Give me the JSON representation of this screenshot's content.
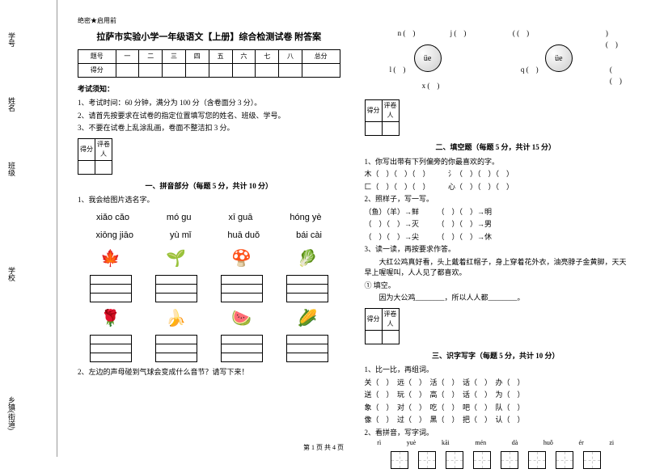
{
  "margin": {
    "labels": [
      "学号",
      "姓名",
      "班级",
      "学校",
      "乡镇(街道)"
    ],
    "dashes": [
      "题",
      "齐",
      "不",
      "内",
      "线",
      "封",
      "密"
    ]
  },
  "header": {
    "secret": "绝密★启用前",
    "title": "拉萨市实验小学一年级语文【上册】综合检测试卷 附答案"
  },
  "scoreTable": {
    "cols": [
      "题号",
      "一",
      "二",
      "三",
      "四",
      "五",
      "六",
      "七",
      "八",
      "总分"
    ],
    "row2": "得分"
  },
  "notice": {
    "heading": "考试须知：",
    "items": [
      "1、考试时间：60 分钟，满分为 100 分（含卷面分 3 分）。",
      "2、请首先按要求在试卷的指定位置填写您的姓名、班级、学号。",
      "3、不要在试卷上乱涂乱画，卷面不整洁扣 3 分。"
    ]
  },
  "scoreBox": {
    "c1": "得分",
    "c2": "评卷人"
  },
  "sec1": {
    "title": "一、拼音部分（每题 5 分，共计 10 分）",
    "q1": "1、我会给图片选名字。",
    "pinyin": [
      "xiǎo cǎo",
      "mó gu",
      "xī guā",
      "hóng yè",
      "xiōng jiāo",
      "yù mǐ",
      "huā duǒ",
      "bái cài"
    ],
    "q2": "2、左边的声母碰到气球会变成什么音节？请写下来！",
    "icons": [
      "🍁",
      "🌱",
      "🍄",
      "🥬",
      "🌹",
      "🍌",
      "🍉",
      "🌽"
    ]
  },
  "diag": {
    "center": "üe",
    "rays1": [
      {
        "t": "n",
        "p": "left:30px;top:5px"
      },
      {
        "t": "j",
        "p": "left:95px;top:5px"
      },
      {
        "t": "l",
        "p": "left:20px;top:50px"
      },
      {
        "t": "x",
        "p": "left:60px;top:70px"
      }
    ],
    "rays2": [
      {
        "t": "(",
        "p": "left:10px;top:5px"
      },
      {
        "t": ")",
        "p": "left:125px;top:5px"
      },
      {
        "t": "q",
        "p": "left:20px;top:50px"
      },
      {
        "t": "(",
        "p": "left:130px;top:50px"
      }
    ]
  },
  "sec2": {
    "title": "二、填空题（每题 5 分，共计 15 分）",
    "q1": "1、你写出带有下列偏旁的你最喜欢的字。",
    "lines1": [
      "木（　）（　）（　）　　　氵（　）（　）（　）",
      "匚（　）（　）（　）　　　心（　）（　）（　）"
    ],
    "q2": "2、照样子，写一写。",
    "lines2": [
      "（鱼）（羊）→鲜　　　（　）（　）→明",
      "（　）（　）→灭　　　（　）（　）→男",
      "（　）（　）→尖　　　（　）（　）→休"
    ],
    "q3": "3、读一读，再按要求作答。",
    "para": "　　大红公鸡真好看，头上戴着红帽子，身上穿着花外衣，油亮脖子金黄脚，天天早上喔喔叫，人人见了都喜欢。",
    "fill": [
      "① 填空。",
      "　　因为大公鸡________，所以人人都________。"
    ]
  },
  "sec3": {
    "title": "三、识字写字（每题 5 分，共计 10 分）",
    "q1": "1、比一比，再组词。",
    "lines": [
      "关（　）　远（　）　活（　）　话（　）　办（　）",
      "送（　）　玩（　）　高（　）　话（　）　为（　）",
      "象（　）　对（　）　吃（　）　吧（　）　队（　）",
      "像（　）　过（　）　黑（　）　把（　）　认（　）"
    ],
    "q2": "2、看拼音，写字词。",
    "pinyin": [
      "rì",
      "yuè",
      "kāi",
      "mén",
      "dà",
      "huǒ",
      "ér",
      "zi"
    ]
  },
  "footer": "第 1 页 共 4 页"
}
